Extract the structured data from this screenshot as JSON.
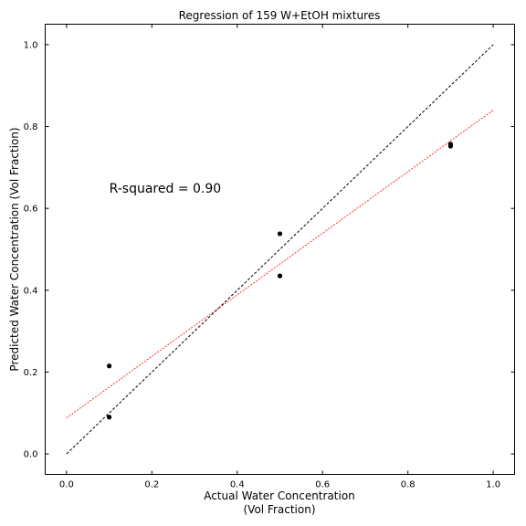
{
  "chart_data": {
    "type": "scatter",
    "title": "Regression of 159 W+EtOH mixtures",
    "xlabel_lines": [
      "Actual Water Concentration",
      "(Vol Fraction)"
    ],
    "ylabel": "Predicted Water Concentration (Vol Fraction)",
    "xlim": [
      -0.05,
      1.05
    ],
    "ylim": [
      -0.05,
      1.05
    ],
    "xticks": [
      0.0,
      0.2,
      0.4,
      0.6,
      0.8,
      1.0
    ],
    "yticks": [
      0.0,
      0.2,
      0.4,
      0.6,
      0.8,
      1.0
    ],
    "xtick_labels": [
      "0.0",
      "0.2",
      "0.4",
      "0.6",
      "0.8",
      "1.0"
    ],
    "ytick_labels": [
      "0.0",
      "0.2",
      "0.4",
      "0.6",
      "0.8",
      "1.0"
    ],
    "grid": false,
    "points": [
      {
        "x": 0.1,
        "y": 0.215
      },
      {
        "x": 0.1,
        "y": 0.09
      },
      {
        "x": 0.5,
        "y": 0.538
      },
      {
        "x": 0.5,
        "y": 0.435
      },
      {
        "x": 0.9,
        "y": 0.757
      },
      {
        "x": 0.9,
        "y": 0.752
      }
    ],
    "point_color": "#000000",
    "identity_line": {
      "x": [
        0.0,
        1.0
      ],
      "y": [
        0.0,
        1.0
      ],
      "color": "#000000",
      "style": "dashed"
    },
    "fit_line": {
      "x": [
        0.0,
        1.0
      ],
      "y": [
        0.088,
        0.84
      ],
      "color": "#ff0000",
      "style": "dashed"
    },
    "annotation": {
      "text": "R-squared = 0.90",
      "x": 0.1,
      "y": 0.65
    }
  }
}
